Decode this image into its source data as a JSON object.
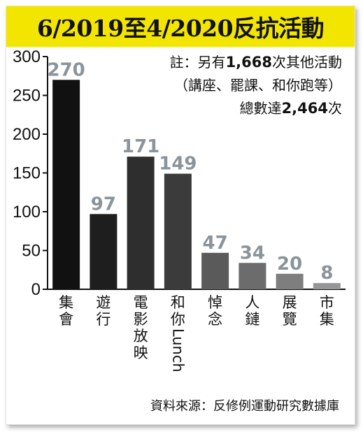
{
  "title": "6/2019至4/2020反抗活動",
  "note": {
    "line1_prefix": "註：另有",
    "line1_number": "1,668",
    "line1_suffix": "次其他活動",
    "line2": "（講座、罷課、和你跑等）",
    "line3_prefix": "總數達",
    "line3_number": "2,464",
    "line3_suffix": "次"
  },
  "source": "資料來源：反修例運動研究數據庫",
  "colors": {
    "title_bg": "#f2e600",
    "value_label": "#8a949a",
    "bars": [
      "#111111",
      "#1e1e1e",
      "#2e2e2e",
      "#3b3b3b",
      "#5a5a5a",
      "#6c6c6c",
      "#7e7e7e",
      "#969696"
    ]
  },
  "chart_data": {
    "type": "bar",
    "categories": [
      "集會",
      "遊行",
      "電影放映",
      "和你Lunch",
      "悼念",
      "人鏈",
      "展覽",
      "市集"
    ],
    "values": [
      270,
      97,
      171,
      149,
      47,
      34,
      20,
      8
    ],
    "ylim": [
      0,
      300
    ],
    "yticks": [
      0,
      50,
      100,
      150,
      200,
      250,
      300
    ],
    "grid": false,
    "data_labels": true
  }
}
